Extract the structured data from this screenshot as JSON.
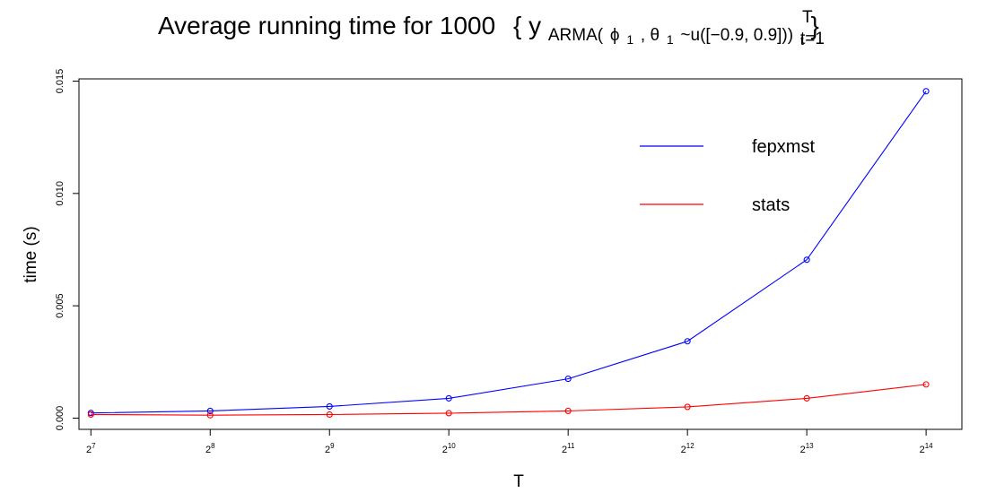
{
  "chart_data": {
    "type": "line",
    "title": {
      "prefix": "Average running time for 1000",
      "brace_open": "{",
      "y": "y",
      "sub_arma": "ARMA(",
      "phi": "ϕ",
      "one_a": "1",
      "comma": ", ",
      "theta": "θ",
      "one_b": "1",
      "dist": "~u([−0.9, 0.9]))",
      "sub_t": "t",
      "brace_close": "}",
      "sup_T": "T",
      "sub_t1": "t=1"
    },
    "xlabel": "T",
    "ylabel": "time (s)",
    "x": [
      7,
      8,
      9,
      10,
      11,
      12,
      13,
      14
    ],
    "x_tick_labels": [
      {
        "base": "2",
        "exp": "7"
      },
      {
        "base": "2",
        "exp": "8"
      },
      {
        "base": "2",
        "exp": "9"
      },
      {
        "base": "2",
        "exp": "10"
      },
      {
        "base": "2",
        "exp": "11"
      },
      {
        "base": "2",
        "exp": "12"
      },
      {
        "base": "2",
        "exp": "13"
      },
      {
        "base": "2",
        "exp": "14"
      }
    ],
    "y_ticks": [
      0.0,
      0.005,
      0.01,
      0.015
    ],
    "y_tick_labels": [
      "0.000",
      "0.005",
      "0.010",
      "0.015"
    ],
    "ylim": [
      -0.0005,
      0.0151
    ],
    "xlim": [
      6.9,
      14.3
    ],
    "series": [
      {
        "name": "fepxmst",
        "color": "#0000ff",
        "values": [
          0.00023,
          0.00032,
          0.00052,
          0.00088,
          0.00175,
          0.00342,
          0.00705,
          0.01455
        ]
      },
      {
        "name": "stats",
        "color": "#ff0000",
        "values": [
          0.00016,
          0.00013,
          0.00016,
          0.00022,
          0.00032,
          0.0005,
          0.00088,
          0.0015
        ]
      }
    ],
    "legend_position": "top-right",
    "grid": false
  }
}
